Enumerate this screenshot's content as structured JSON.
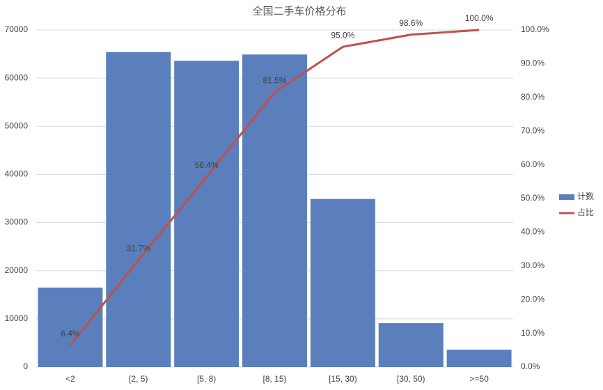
{
  "chart_data": {
    "type": "bar",
    "title": "全国二手车价格分布",
    "categories": [
      "<2",
      "[2, 5)",
      "[5, 8)",
      "[8, 15)",
      "[15, 30)",
      "[30, 50)",
      ">=50"
    ],
    "series": [
      {
        "name": "计数",
        "type": "bar",
        "color": "#5a7fbc",
        "values": [
          16500,
          65400,
          63600,
          64900,
          34900,
          9100,
          3600
        ]
      },
      {
        "name": "占比",
        "type": "line",
        "axis": "y2",
        "color": "#c0504d",
        "values": [
          6.4,
          31.7,
          56.4,
          81.5,
          95.0,
          98.6,
          100.0
        ],
        "value_labels": [
          "6.4%",
          "31.7%",
          "56.4%",
          "81.5%",
          "95.0%",
          "98.6%",
          "100.0%"
        ]
      }
    ],
    "ylim": [
      0,
      70000
    ],
    "yticks": [
      0,
      10000,
      20000,
      30000,
      40000,
      50000,
      60000,
      70000
    ],
    "y2lim": [
      0,
      100
    ],
    "y2ticks": [
      {
        "value": 0,
        "label": "0.0%"
      },
      {
        "value": 10,
        "label": "10.0%"
      },
      {
        "value": 20,
        "label": "20.0%"
      },
      {
        "value": 30,
        "label": "30.0%"
      },
      {
        "value": 40,
        "label": "40.0%"
      },
      {
        "value": 50,
        "label": "50.0%"
      },
      {
        "value": 60,
        "label": "60.0%"
      },
      {
        "value": 70,
        "label": "70.0%"
      },
      {
        "value": 80,
        "label": "80.0%"
      },
      {
        "value": 90,
        "label": "90.0%"
      },
      {
        "value": 100,
        "label": "100.0%"
      }
    ],
    "grid": true,
    "legend": "right"
  }
}
